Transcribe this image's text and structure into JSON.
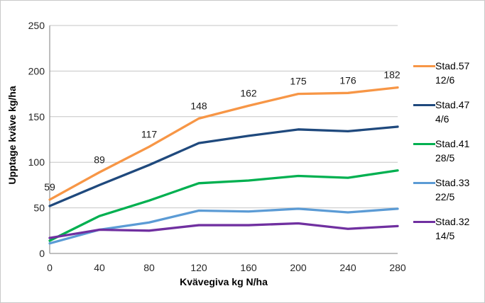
{
  "chart_data": {
    "type": "line",
    "xlabel": "Kvävegiva kg N/ha",
    "ylabel": "Upptage kväve kg/ha",
    "x": [
      0,
      40,
      80,
      120,
      160,
      200,
      240,
      280
    ],
    "xticks": [
      "0",
      "40",
      "80",
      "120",
      "160",
      "200",
      "240",
      "280"
    ],
    "yticks": [
      "0",
      "50",
      "100",
      "150",
      "200",
      "250"
    ],
    "ylim": [
      0,
      250
    ],
    "grid": "horizontal",
    "legend_position": "right",
    "series": [
      {
        "name": "Stad.57",
        "date": "12/6",
        "color": "#F79646",
        "show_labels": true,
        "values": [
          59,
          89,
          117,
          148,
          162,
          175,
          176,
          182
        ]
      },
      {
        "name": "Stad.47",
        "date": "4/6",
        "color": "#1F497D",
        "show_labels": false,
        "values": [
          52,
          75,
          97,
          121,
          129,
          136,
          134,
          139
        ]
      },
      {
        "name": "Stad.41",
        "date": "28/5",
        "color": "#00B050",
        "show_labels": false,
        "values": [
          14,
          41,
          58,
          77,
          80,
          85,
          83,
          91
        ]
      },
      {
        "name": "Stad.33",
        "date": "22/5",
        "color": "#5B9BD5",
        "show_labels": false,
        "values": [
          11,
          26,
          34,
          47,
          46,
          49,
          45,
          49
        ]
      },
      {
        "name": "Stad.32",
        "date": "14/5",
        "color": "#7030A0",
        "show_labels": false,
        "values": [
          17,
          26,
          25,
          31,
          31,
          33,
          27,
          30
        ]
      }
    ]
  }
}
